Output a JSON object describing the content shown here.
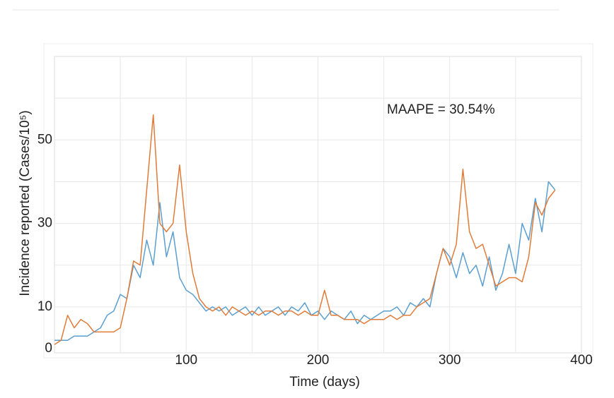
{
  "chart_data": {
    "type": "line",
    "xlabel": "Time (days)",
    "ylabel": "Incidence reported (Cases/10⁵)",
    "annotation": "MAAPE = 30.54%",
    "xlim": [
      0,
      400
    ],
    "ylim": [
      -1,
      70
    ],
    "xticks": [
      100,
      200,
      300,
      400
    ],
    "yticks": [
      0,
      10,
      30,
      50
    ],
    "xgrid": [
      50,
      100,
      150,
      200,
      250,
      300,
      350
    ],
    "ygrid": [
      10,
      20,
      30,
      40,
      50,
      60
    ],
    "grid": true,
    "x": [
      0,
      5,
      10,
      15,
      20,
      25,
      30,
      35,
      40,
      45,
      50,
      55,
      60,
      65,
      70,
      75,
      80,
      85,
      90,
      95,
      100,
      105,
      110,
      115,
      120,
      125,
      130,
      135,
      140,
      145,
      150,
      155,
      160,
      165,
      170,
      175,
      180,
      185,
      190,
      195,
      200,
      205,
      210,
      215,
      220,
      225,
      230,
      235,
      240,
      245,
      250,
      255,
      260,
      265,
      270,
      275,
      280,
      285,
      290,
      295,
      300,
      305,
      310,
      315,
      320,
      325,
      330,
      335,
      340,
      345,
      350,
      355,
      360,
      365,
      370,
      375,
      380
    ],
    "series": [
      {
        "color": "#5b9fd0",
        "values": [
          2,
          2,
          2,
          3,
          3,
          3,
          4,
          5,
          8,
          9,
          13,
          12,
          20,
          17,
          26,
          20,
          35,
          22,
          28,
          17,
          14,
          13,
          11,
          9,
          10,
          9,
          10,
          8,
          9,
          10,
          8,
          10,
          8,
          9,
          10,
          8,
          10,
          9,
          11,
          8,
          9,
          7,
          9,
          8,
          7,
          9,
          6,
          8,
          7,
          8,
          9,
          9,
          10,
          8,
          11,
          10,
          12,
          10,
          18,
          24,
          22,
          17,
          23,
          18,
          20,
          15,
          22,
          14,
          18,
          25,
          18,
          30,
          26,
          36,
          28,
          40,
          38
        ]
      },
      {
        "color": "#e07b39",
        "values": [
          1,
          2,
          8,
          5,
          7,
          6,
          4,
          4,
          4,
          4,
          5,
          12,
          21,
          20,
          38,
          56,
          30,
          28,
          30,
          44,
          28,
          18,
          12,
          10,
          9,
          10,
          8,
          10,
          9,
          8,
          9,
          8,
          9,
          9,
          8,
          9,
          9,
          8,
          9,
          8,
          8,
          14,
          8,
          8,
          7,
          7,
          7,
          6,
          7,
          7,
          7,
          8,
          7,
          8,
          8,
          10,
          11,
          12,
          18,
          24,
          20,
          25,
          43,
          28,
          24,
          25,
          20,
          15,
          16,
          17,
          17,
          16,
          22,
          35,
          32,
          36,
          38
        ]
      }
    ]
  }
}
